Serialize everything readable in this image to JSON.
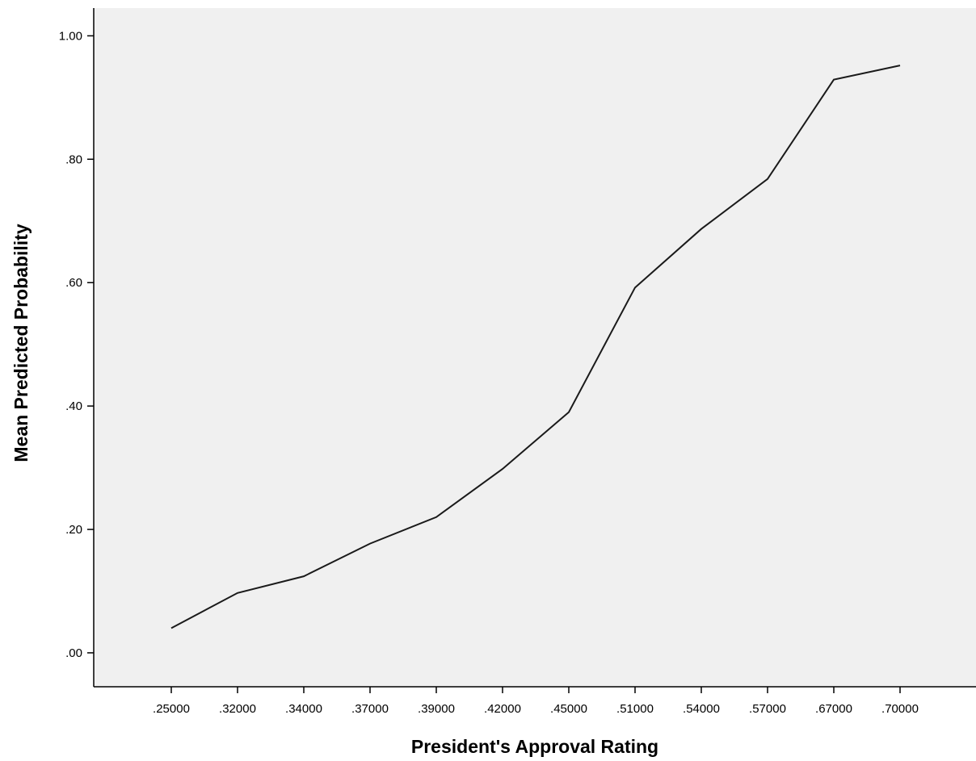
{
  "chart_data": {
    "type": "line",
    "title": "",
    "xlabel": "President's Approval Rating",
    "ylabel": "Mean Predicted Probability",
    "categories": [
      ".25000",
      ".32000",
      ".34000",
      ".37000",
      ".39000",
      ".42000",
      ".45000",
      ".51000",
      ".54000",
      ".57000",
      ".67000",
      ".70000"
    ],
    "values": [
      0.04,
      0.097,
      0.124,
      0.177,
      0.22,
      0.298,
      0.39,
      0.592,
      0.687,
      0.768,
      0.929,
      0.952
    ],
    "y_ticks": [
      ".00",
      ".20",
      ".40",
      ".60",
      ".80",
      "1.00"
    ],
    "ylim": [
      -0.055,
      1.045
    ],
    "grid": false,
    "legend": "none",
    "colors": {
      "plot_background": "#f0f0f0",
      "line": "#1a1a1a",
      "axis": "#000000"
    }
  }
}
